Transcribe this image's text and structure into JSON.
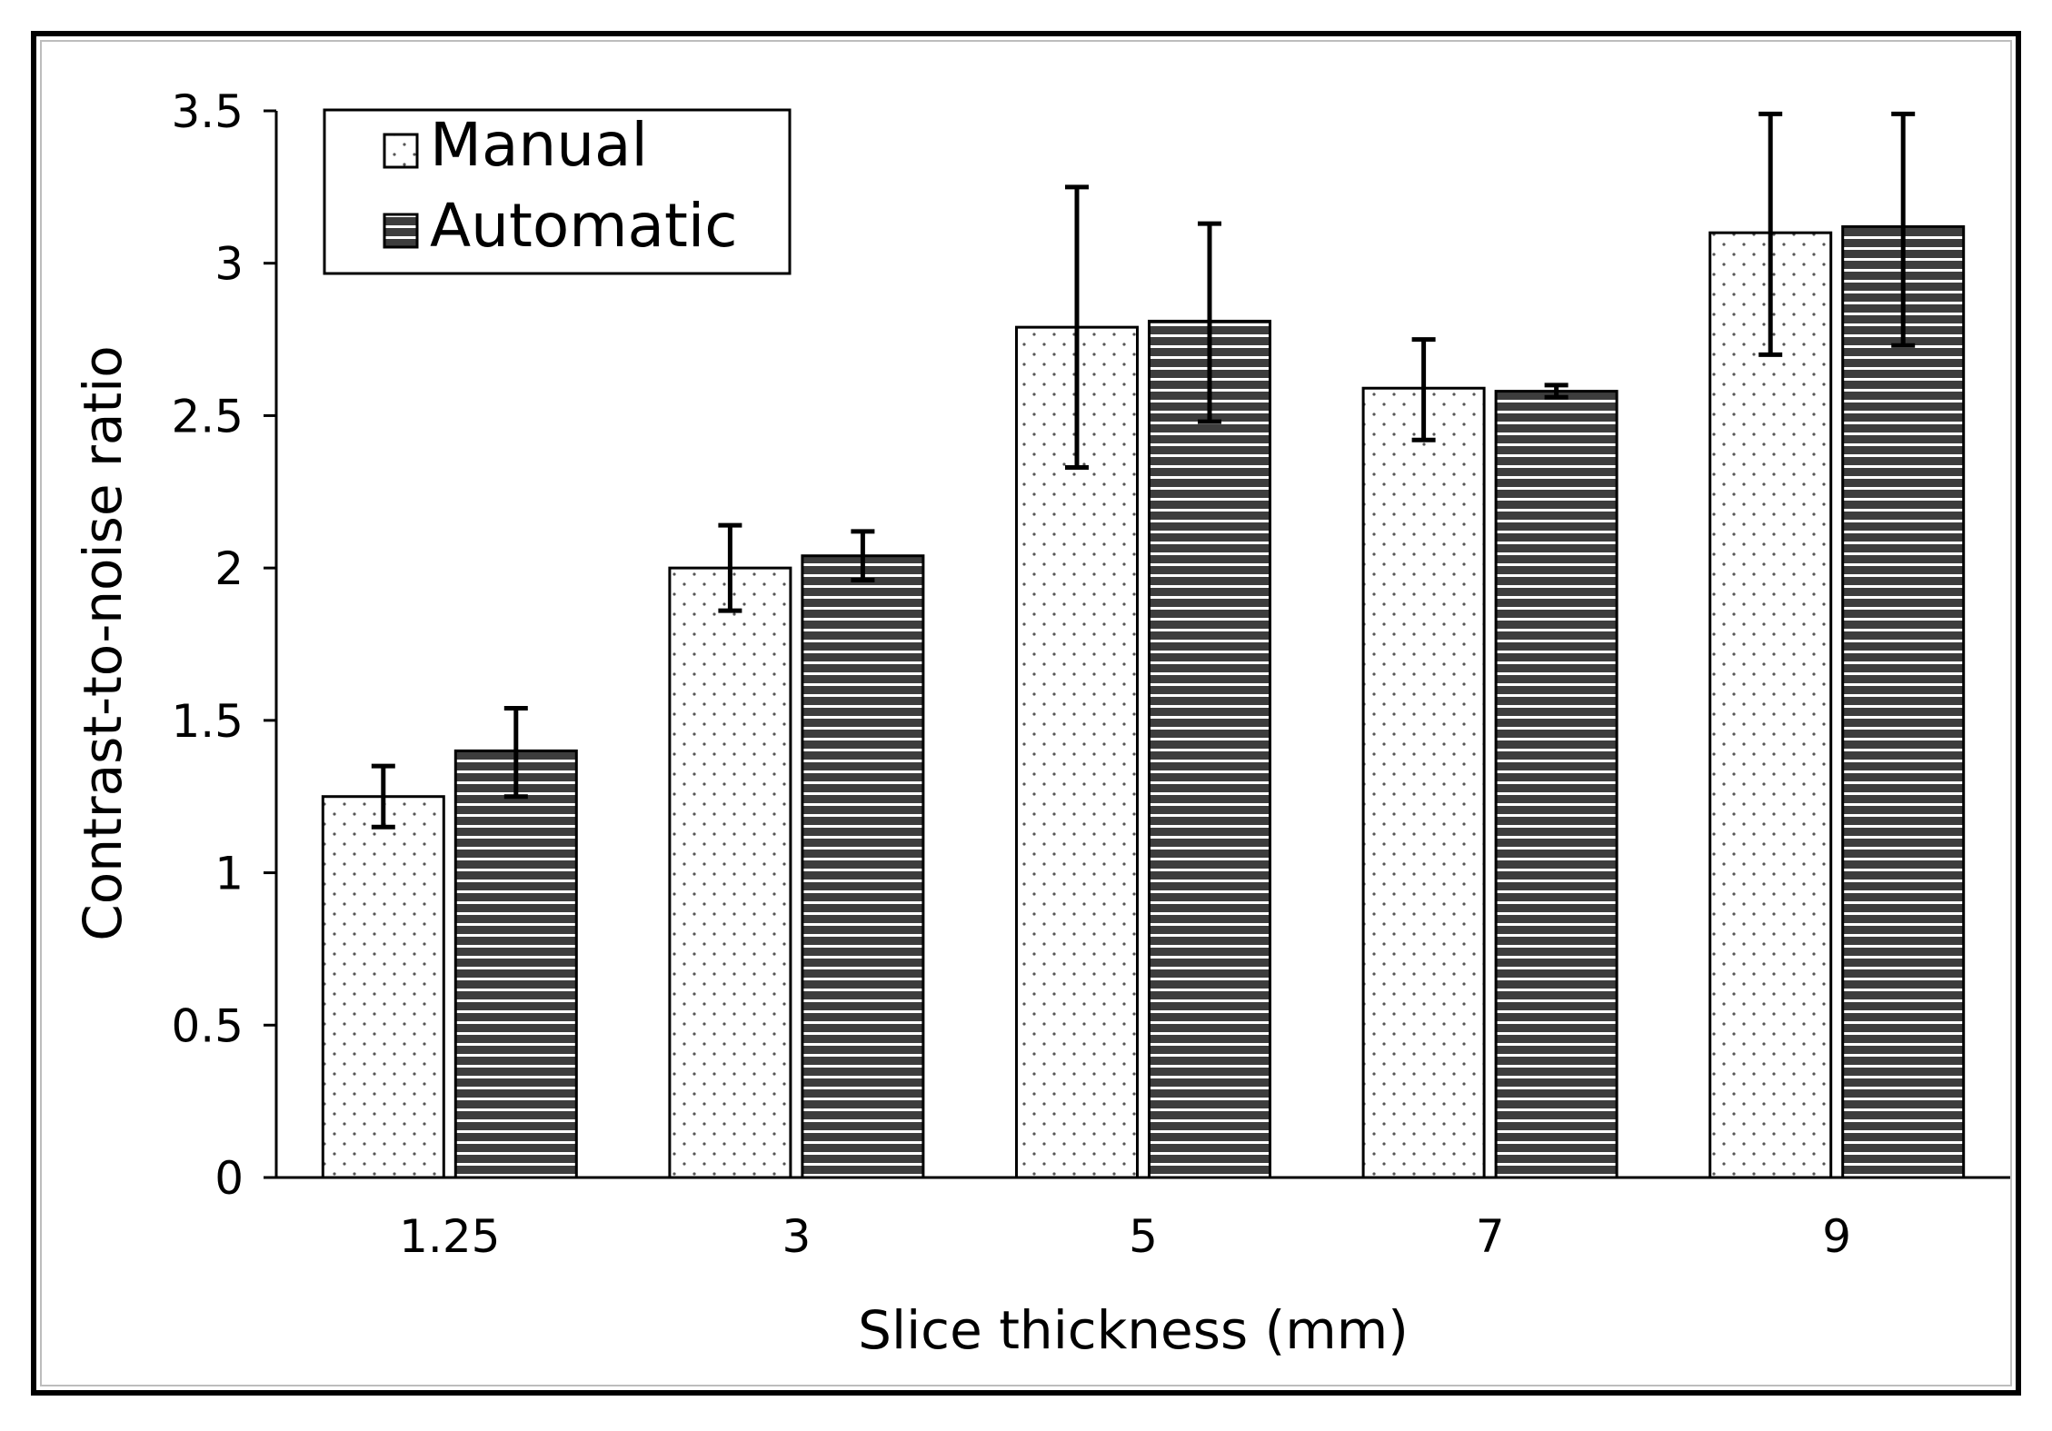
{
  "chart_data": {
    "type": "bar",
    "title": "",
    "xlabel": "Slice thickness (mm)",
    "ylabel": "Contrast-to-noise ratio",
    "categories": [
      "1.25",
      "3",
      "5",
      "7",
      "9"
    ],
    "ylim": [
      0,
      3.5
    ],
    "yticks": [
      "0",
      "0.5",
      "1",
      "1.5",
      "2",
      "2.5",
      "3",
      "3.5"
    ],
    "ytick_values": [
      0,
      0.5,
      1,
      1.5,
      2,
      2.5,
      3,
      3.5
    ],
    "grid": false,
    "legend_position": "top-left",
    "series": [
      {
        "name": "Manual",
        "pattern": "dots",
        "values": [
          1.25,
          2.0,
          2.79,
          2.59,
          3.1
        ],
        "error_low": [
          1.15,
          1.86,
          2.33,
          2.42,
          2.7
        ],
        "error_high": [
          1.35,
          2.14,
          3.25,
          2.75,
          3.49
        ]
      },
      {
        "name": "Automatic",
        "pattern": "horizontal-stripes",
        "values": [
          1.4,
          2.04,
          2.81,
          2.58,
          3.12
        ],
        "error_low": [
          1.25,
          1.96,
          2.48,
          2.56,
          2.73
        ],
        "error_high": [
          1.54,
          2.12,
          3.13,
          2.6,
          3.49
        ]
      }
    ]
  },
  "colors": {
    "manual_fill": "#ffffff",
    "manual_dot": "#555555",
    "automatic_fill": "#3d3d3d",
    "automatic_stripe": "#ffffff",
    "axis": "#000000"
  }
}
